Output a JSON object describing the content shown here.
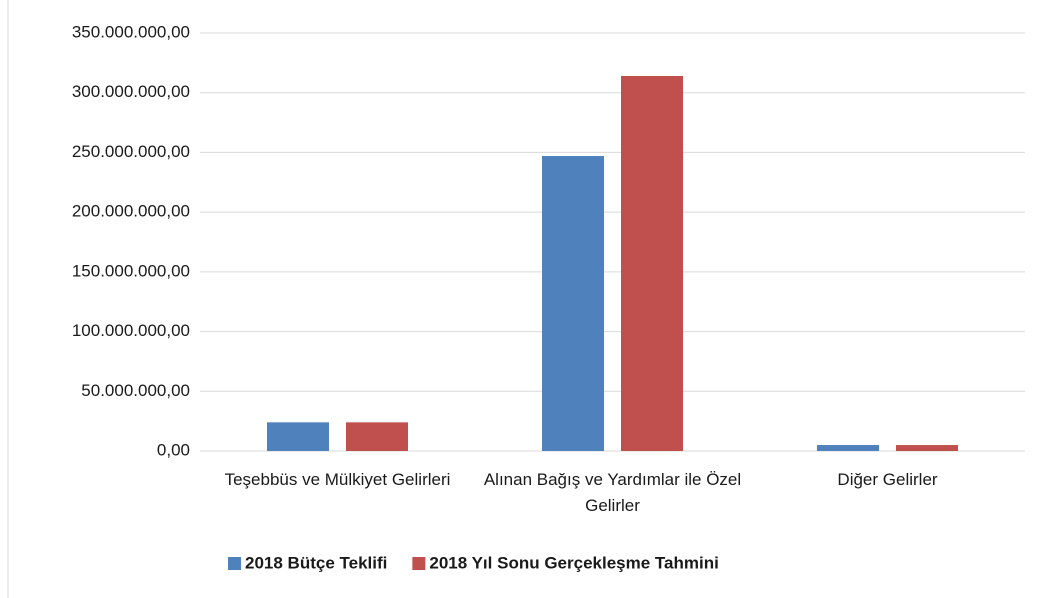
{
  "chart_data": {
    "type": "bar",
    "categories": [
      "Teşebbüs ve Mülkiyet Gelirleri",
      "Alınan Bağış ve Yardımlar ile Özel Gelirler",
      "Diğer Gelirler"
    ],
    "series": [
      {
        "name": "2018 Bütçe Teklifi",
        "color": "#4f81bd",
        "values": [
          24000000,
          247000000,
          5000000
        ]
      },
      {
        "name": "2018 Yıl Sonu Gerçekleşme Tahmini",
        "color": "#c0504d",
        "values": [
          24000000,
          314000000,
          5000000
        ]
      }
    ],
    "ylim": [
      0,
      350000000
    ],
    "yticks": [
      {
        "value": 0,
        "label": "0,00"
      },
      {
        "value": 50000000,
        "label": "50.000.000,00"
      },
      {
        "value": 100000000,
        "label": "100.000.000,00"
      },
      {
        "value": 150000000,
        "label": "150.000.000,00"
      },
      {
        "value": 200000000,
        "label": "200.000.000,00"
      },
      {
        "value": 250000000,
        "label": "250.000.000,00"
      },
      {
        "value": 300000000,
        "label": "300.000.000,00"
      },
      {
        "value": 350000000,
        "label": "350.000.000,00"
      }
    ],
    "grid": true,
    "legend": "bottom"
  }
}
